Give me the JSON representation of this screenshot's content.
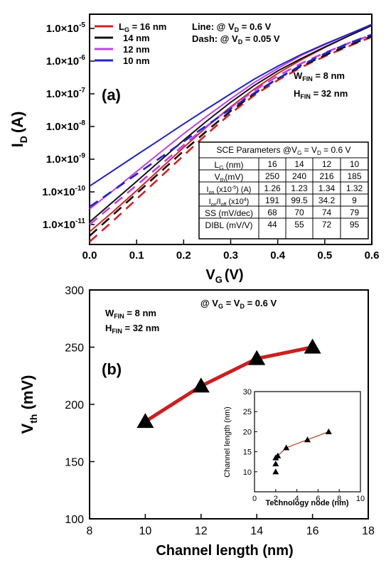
{
  "chart_data": [
    {
      "type": "line",
      "panel_label": "(a)",
      "xlabel": "V",
      "xlabel_sub": "G",
      "xlabel_unit": "(V)",
      "ylabel": "I",
      "ylabel_sub": "D",
      "ylabel_unit": "(A)",
      "xlim": [
        0.0,
        0.6
      ],
      "x_ticks": [
        0.0,
        0.1,
        0.2,
        0.3,
        0.4,
        0.5,
        0.6
      ],
      "x_tick_labels": [
        "0.0",
        "0.1",
        "0.2",
        "0.3",
        "0.4",
        "0.5",
        "0.6"
      ],
      "y_scale": "log",
      "y_ticks": [
        1e-11,
        1e-10,
        1e-09,
        1e-08,
        1e-07,
        1e-06,
        1e-05
      ],
      "y_tick_mantissa": "1.0×10",
      "y_tick_exponents": [
        "-11",
        "-10",
        "-9",
        "-8",
        "-7",
        "-6",
        "-5"
      ],
      "legend": {
        "placement": "top-left",
        "label_prefix": "L",
        "label_prefix_sub": "G",
        "label_first_suffix": " = 16 nm",
        "entries": [
          {
            "text": "16 nm",
            "color": "#d42020"
          },
          {
            "text": "14 nm",
            "color": "#111111"
          },
          {
            "text": "12 nm",
            "color": "#c040e8"
          },
          {
            "text": "10 nm",
            "color": "#2222cc"
          }
        ]
      },
      "annotations": {
        "line_label": "Line: @ V",
        "line_sub": "D",
        "line_value": " = 0.6 V",
        "dash_label": "Dash: @ V",
        "dash_sub": "D",
        "dash_value": " = 0.05 V",
        "wfin_main": "W",
        "wfin_sub": "FIN",
        "wfin_value": " = 8 nm",
        "hfin_main": "H",
        "hfin_sub": "FIN",
        "hfin_value": " = 32 nm"
      },
      "series": [
        {
          "name": "16 nm",
          "vd": 0.6,
          "style": "solid",
          "color": "#d42020",
          "x": [
            0.0,
            0.05,
            0.1,
            0.15,
            0.2,
            0.25,
            0.3,
            0.35,
            0.4,
            0.45,
            0.5,
            0.55,
            0.6
          ],
          "y": [
            6e-12,
            2.5e-11,
            1.1e-10,
            5e-10,
            2.3e-09,
            1e-08,
            4e-08,
            1.4e-07,
            4.2e-07,
            1.1e-06,
            2.6e-06,
            5.8e-06,
            1.26e-05
          ]
        },
        {
          "name": "14 nm",
          "vd": 0.6,
          "style": "solid",
          "color": "#111111",
          "x": [
            0.0,
            0.05,
            0.1,
            0.15,
            0.2,
            0.25,
            0.3,
            0.35,
            0.4,
            0.45,
            0.5,
            0.55,
            0.6
          ],
          "y": [
            1.2e-11,
            5e-11,
            2.1e-10,
            9e-10,
            3.8e-09,
            1.5e-08,
            5.5e-08,
            1.8e-07,
            5e-07,
            1.2e-06,
            2.7e-06,
            5.8e-06,
            1.23e-05
          ]
        },
        {
          "name": "12 nm",
          "vd": 0.6,
          "style": "solid",
          "color": "#c040e8",
          "x": [
            0.0,
            0.05,
            0.1,
            0.15,
            0.2,
            0.25,
            0.3,
            0.35,
            0.4,
            0.45,
            0.5,
            0.55,
            0.6
          ],
          "y": [
            3e-11,
            1.1e-10,
            4.2e-10,
            1.6e-09,
            6e-09,
            2.1e-08,
            7e-08,
            2.2e-07,
            6e-07,
            1.5e-06,
            3.2e-06,
            6.5e-06,
            1.34e-05
          ]
        },
        {
          "name": "10 nm",
          "vd": 0.6,
          "style": "solid",
          "color": "#2222cc",
          "x": [
            0.0,
            0.05,
            0.1,
            0.15,
            0.2,
            0.25,
            0.3,
            0.35,
            0.4,
            0.45,
            0.5,
            0.55,
            0.6
          ],
          "y": [
            1.5e-10,
            4.5e-10,
            1.35e-09,
            4e-09,
            1.2e-08,
            3.5e-08,
            1e-07,
            2.8e-07,
            7e-07,
            1.6e-06,
            3.3e-06,
            6.6e-06,
            1.32e-05
          ]
        },
        {
          "name": "16 nm",
          "vd": 0.05,
          "style": "dash",
          "color": "#d42020",
          "x": [
            0.0,
            0.05,
            0.1,
            0.15,
            0.2,
            0.25,
            0.3,
            0.35,
            0.4,
            0.45,
            0.5,
            0.55,
            0.6
          ],
          "y": [
            3e-12,
            1.3e-11,
            6e-11,
            2.8e-10,
            1.3e-09,
            6e-09,
            2.5e-08,
            9e-08,
            2.6e-07,
            6.5e-07,
            1.4e-06,
            2.8e-06,
            5.5e-06
          ]
        },
        {
          "name": "14 nm",
          "vd": 0.05,
          "style": "dash",
          "color": "#111111",
          "x": [
            0.0,
            0.05,
            0.1,
            0.15,
            0.2,
            0.25,
            0.3,
            0.35,
            0.4,
            0.45,
            0.5,
            0.55,
            0.6
          ],
          "y": [
            4.5e-12,
            2e-11,
            9e-11,
            4e-10,
            1.8e-09,
            7.5e-09,
            3e-08,
            1e-07,
            2.9e-07,
            7e-07,
            1.5e-06,
            3e-06,
            5.8e-06
          ]
        },
        {
          "name": "12 nm",
          "vd": 0.05,
          "style": "dash",
          "color": "#c040e8",
          "x": [
            0.0,
            0.05,
            0.1,
            0.15,
            0.2,
            0.25,
            0.3,
            0.35,
            0.4,
            0.45,
            0.5,
            0.55,
            0.6
          ],
          "y": [
            1e-11,
            4e-11,
            1.6e-10,
            6.5e-10,
            2.7e-09,
            1.05e-08,
            3.8e-08,
            1.25e-07,
            3.5e-07,
            8.5e-07,
            1.8e-06,
            3.5e-06,
            6.3e-06
          ]
        },
        {
          "name": "10 nm",
          "vd": 0.05,
          "style": "dash",
          "color": "#2222cc",
          "x": [
            0.0,
            0.05,
            0.1,
            0.15,
            0.2,
            0.25,
            0.3,
            0.35,
            0.4,
            0.45,
            0.5,
            0.55,
            0.6
          ],
          "y": [
            3.5e-11,
            1.1e-10,
            3.5e-10,
            1.1e-09,
            3.5e-09,
            1.1e-08,
            3.5e-08,
            1.05e-07,
            2.9e-07,
            7.5e-07,
            1.7e-06,
            3.5e-06,
            6.5e-06
          ]
        }
      ],
      "table": {
        "title": "SCE Parameters @V",
        "title_sub1": "G",
        "title_mid": " = V",
        "title_sub2": "D",
        "title_end": " = 0.6 V",
        "rows": [
          {
            "label": "L",
            "label_sub": "G",
            "label_rest": " (nm)",
            "values": [
              "16",
              "14",
              "12",
              "10"
            ]
          },
          {
            "label": "V",
            "label_sub": "th",
            "label_rest": "(mV)",
            "values": [
              "250",
              "240",
              "216",
              "185"
            ]
          },
          {
            "label": "I",
            "label_sub": "on",
            "label_rest": " (x10",
            "label_sup": "-5",
            "label_end": ") (A)",
            "values": [
              "1.26",
              "1.23",
              "1.34",
              "1.32"
            ]
          },
          {
            "label": "I",
            "label_sub": "on",
            "label_rest": "/I",
            "label_sub2": "off",
            "label_end": " (x10",
            "label_sup": "4",
            "label_end2": ")",
            "values": [
              "191",
              "99.5",
              "34.2",
              "9"
            ]
          },
          {
            "label": "SS (mV/dec)",
            "values": [
              "68",
              "70",
              "74",
              "79"
            ]
          },
          {
            "label": "DIBL (mV/V)",
            "values": [
              "44",
              "55",
              "72",
              "95"
            ]
          }
        ]
      }
    },
    {
      "type": "line",
      "panel_label": "(b)",
      "xlabel": "Channel length (nm)",
      "ylabel": "V",
      "ylabel_sub": "th",
      "ylabel_unit": " (mV)",
      "xlim": [
        8,
        18
      ],
      "ylim": [
        100,
        300
      ],
      "x_ticks": [
        8,
        10,
        12,
        14,
        16,
        18
      ],
      "y_ticks": [
        100,
        150,
        200,
        250,
        300
      ],
      "annotations": {
        "cond_label": "@ V",
        "cond_sub1": "G",
        "cond_mid": " = V",
        "cond_sub2": "D",
        "cond_end": " = 0.6 V",
        "wfin_main": "W",
        "wfin_sub": "FIN",
        "wfin_value": " = 8 nm",
        "hfin_main": "H",
        "hfin_sub": "FIN",
        "hfin_value": " = 32 nm"
      },
      "line_color": "#cc1f1f",
      "series": [
        {
          "x": [
            10,
            12,
            14,
            16
          ],
          "y": [
            185,
            216,
            240,
            250
          ],
          "marker": "triangle"
        }
      ]
    },
    {
      "type": "scatter",
      "inset": true,
      "xlabel": "Technology node (nm)",
      "ylabel": "Channel length (nm)",
      "xlim": [
        0,
        10
      ],
      "ylim": [
        5,
        30
      ],
      "x_ticks": [
        0,
        2,
        4,
        6,
        8,
        10
      ],
      "y_ticks": [
        10,
        15,
        20,
        25,
        30
      ],
      "line_color": "#b04020",
      "series": [
        {
          "x": [
            2,
            2,
            2,
            2.2,
            3,
            5,
            7
          ],
          "y": [
            10,
            12,
            13.5,
            14,
            16,
            18,
            20
          ],
          "marker": "triangle"
        }
      ]
    }
  ]
}
